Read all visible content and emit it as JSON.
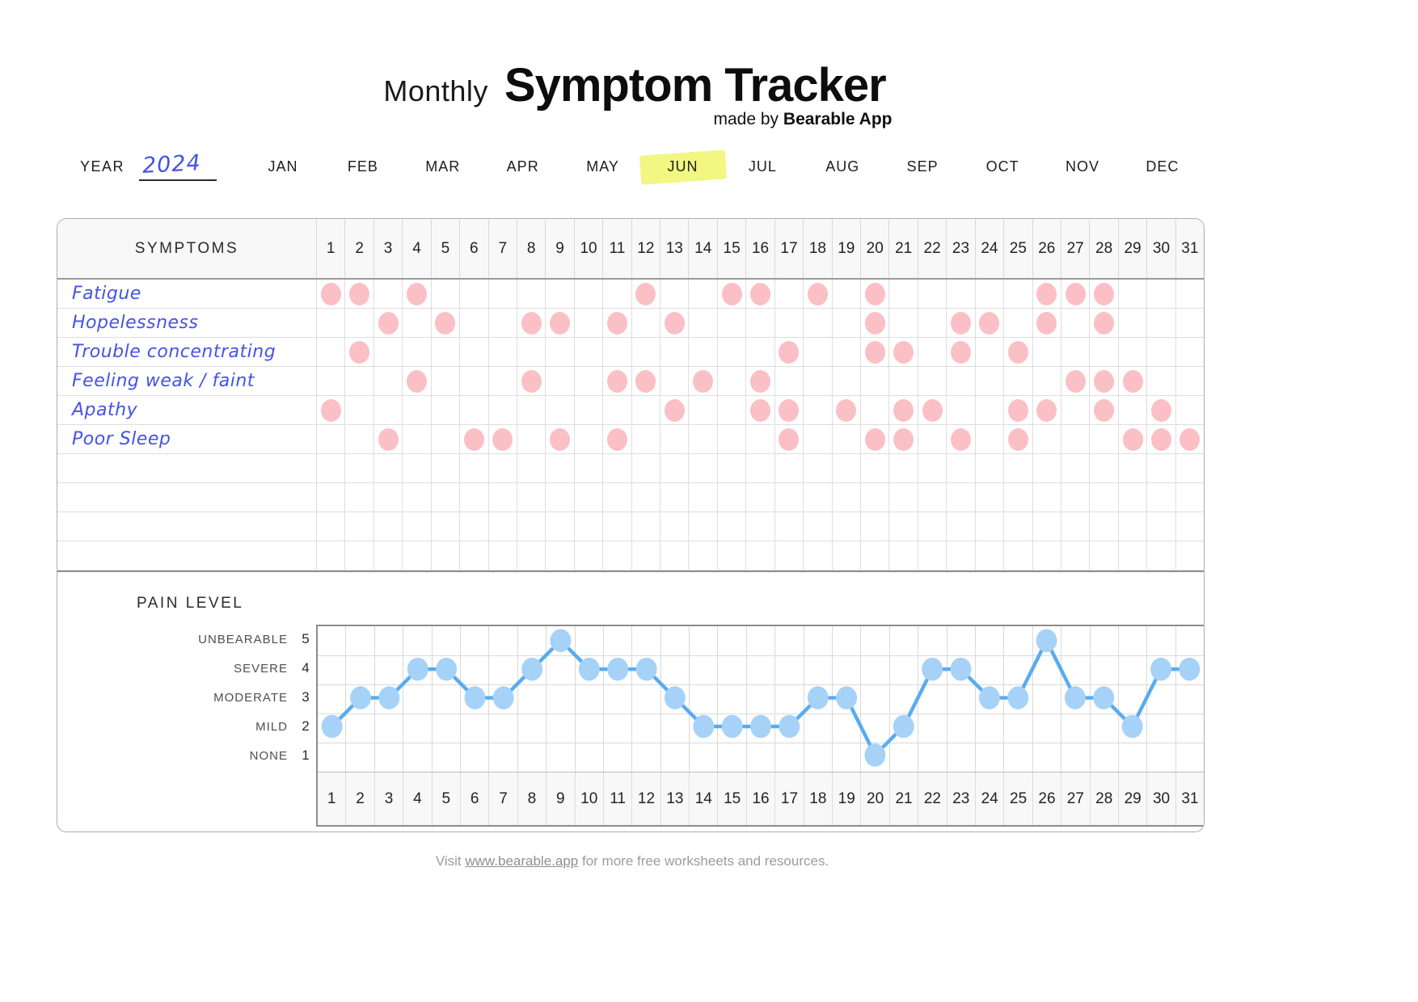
{
  "title": {
    "prefix": "Monthly",
    "main": "Symptom Tracker",
    "byline_prefix": "made by",
    "byline_brand": "Bearable App"
  },
  "year_row": {
    "year_label": "YEAR",
    "year_value": "2024",
    "months": [
      "JAN",
      "FEB",
      "MAR",
      "APR",
      "MAY",
      "JUN",
      "JUL",
      "AUG",
      "SEP",
      "OCT",
      "NOV",
      "DEC"
    ],
    "highlighted_month": "JUN"
  },
  "symptoms_table": {
    "header": "SYMPTOMS",
    "days": [
      1,
      2,
      3,
      4,
      5,
      6,
      7,
      8,
      9,
      10,
      11,
      12,
      13,
      14,
      15,
      16,
      17,
      18,
      19,
      20,
      21,
      22,
      23,
      24,
      25,
      26,
      27,
      28,
      29,
      30,
      31
    ],
    "rows": [
      {
        "label": "Fatigue",
        "days": [
          1,
          2,
          4,
          12,
          15,
          16,
          18,
          20,
          26,
          27,
          28
        ]
      },
      {
        "label": "Hopelessness",
        "days": [
          3,
          5,
          8,
          9,
          11,
          13,
          20,
          23,
          24,
          26,
          28
        ]
      },
      {
        "label": "Trouble concentrating",
        "days": [
          2,
          17,
          20,
          21,
          23,
          25
        ]
      },
      {
        "label": "Feeling weak / faint",
        "days": [
          4,
          8,
          11,
          12,
          14,
          16,
          27,
          28,
          29
        ]
      },
      {
        "label": "Apathy",
        "days": [
          1,
          13,
          16,
          17,
          19,
          21,
          22,
          25,
          26,
          28,
          30
        ]
      },
      {
        "label": "Poor Sleep",
        "days": [
          3,
          6,
          7,
          9,
          11,
          17,
          20,
          21,
          23,
          25,
          29,
          30,
          31
        ]
      }
    ],
    "empty_row_count": 4
  },
  "chart_data": {
    "type": "line",
    "title": "PAIN LEVEL",
    "x": [
      1,
      2,
      3,
      4,
      5,
      6,
      7,
      8,
      9,
      10,
      11,
      12,
      13,
      14,
      15,
      16,
      17,
      18,
      19,
      20,
      21,
      22,
      23,
      24,
      25,
      26,
      27,
      28,
      29,
      30,
      31
    ],
    "values": [
      2,
      3,
      3,
      4,
      4,
      3,
      3,
      4,
      5,
      4,
      4,
      4,
      3,
      2,
      2,
      2,
      2,
      3,
      3,
      1,
      2,
      4,
      4,
      3,
      3,
      5,
      3,
      3,
      2,
      4,
      4
    ],
    "xlabel": "",
    "ylabel": "PAIN LEVEL",
    "ylim": [
      1,
      5
    ],
    "grid": true,
    "y_axis": [
      {
        "label": "UNBEARABLE",
        "value": 5
      },
      {
        "label": "SEVERE",
        "value": 4
      },
      {
        "label": "MODERATE",
        "value": 3
      },
      {
        "label": "MILD",
        "value": 2
      },
      {
        "label": "NONE",
        "value": 1
      }
    ]
  },
  "footer": {
    "prefix": "Visit",
    "link": "www.bearable.app",
    "suffix": "for more free worksheets and resources."
  },
  "colors": {
    "symptom_dot": "#fac0c5",
    "pain_dot": "#a6d2f8",
    "pain_line": "#58acf0",
    "handwriting": "#4353e8",
    "highlight": "#eff464"
  }
}
